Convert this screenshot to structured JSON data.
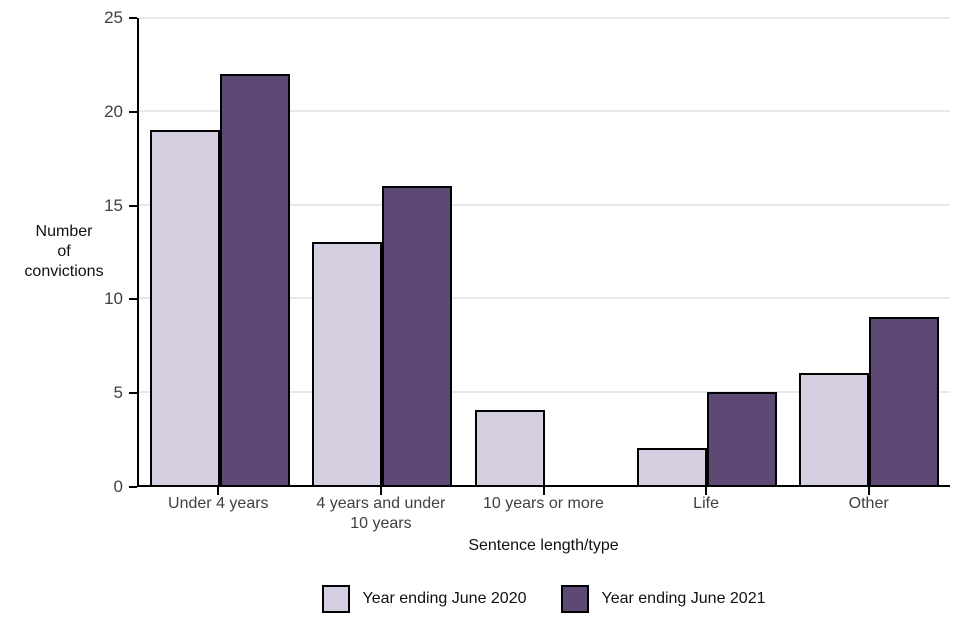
{
  "chart_data": {
    "type": "bar",
    "categories": [
      "Under 4 years",
      "4 years and under 10 years",
      "10 years or more",
      "Life",
      "Other"
    ],
    "series": [
      {
        "name": "Year ending June 2020",
        "color": "#D5CFE1",
        "values": [
          19,
          13,
          4,
          2,
          6
        ]
      },
      {
        "name": "Year ending June 2021",
        "color": "#5D4973",
        "values": [
          22,
          16,
          0,
          5,
          9
        ]
      }
    ],
    "title": "",
    "xlabel": "Sentence length/type",
    "ylabel": "Number of convictions",
    "ylabel_lines": [
      "Number",
      "of",
      "convictions"
    ],
    "ylim": [
      0,
      25
    ],
    "yticks": [
      0,
      5,
      10,
      15,
      20,
      25
    ],
    "grid": true,
    "legend_position": "bottom"
  },
  "colors": {
    "bar_border": "#000000",
    "axis": "#000000",
    "gridline": "#E8E8E8",
    "tick_text": "#404040",
    "title_text": "#111111"
  }
}
